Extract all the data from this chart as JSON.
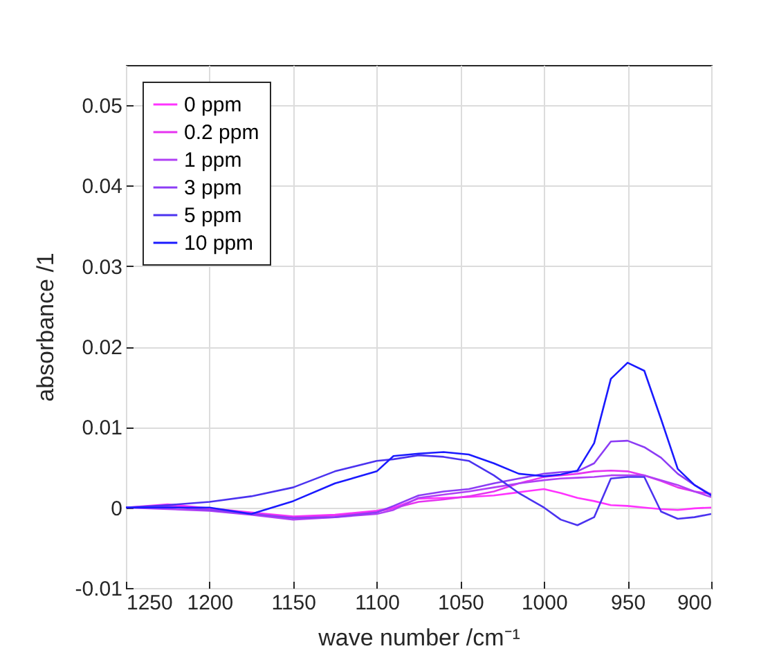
{
  "chart_data": {
    "type": "line",
    "xlabel": "wave number /cm⁻¹",
    "ylabel": "absorbance /1",
    "x": [
      1250,
      1225,
      1200,
      1175,
      1150,
      1125,
      1100,
      1090,
      1075,
      1060,
      1045,
      1030,
      1015,
      1000,
      990,
      980,
      970,
      960,
      950,
      940,
      930,
      920,
      910,
      900
    ],
    "series": [
      {
        "name": "0 ppm",
        "color": "#ff33ff",
        "values": [
          0,
          0.0004,
          -0.0001,
          -0.0006,
          -0.0011,
          -0.0009,
          -0.0004,
          0,
          0.0011,
          0.0012,
          0.0013,
          0.0015,
          0.0019,
          0.0023,
          0.0018,
          0.0012,
          0.0008,
          0.0003,
          0.0002,
          0,
          -0.0002,
          -0.0003,
          -0.0001,
          0
        ]
      },
      {
        "name": "0.2 ppm",
        "color": "#e633f0",
        "values": [
          0,
          0.0002,
          -0.0002,
          -0.0007,
          -0.0012,
          -0.001,
          -0.0005,
          -0.0001,
          0.0007,
          0.001,
          0.0014,
          0.002,
          0.003,
          0.0038,
          0.004,
          0.0042,
          0.0045,
          0.0046,
          0.0045,
          0.004,
          0.0033,
          0.0025,
          0.002,
          0.0017
        ]
      },
      {
        "name": "1 ppm",
        "color": "#b040f5",
        "values": [
          0,
          -0.0002,
          -0.0004,
          -0.0009,
          -0.0015,
          -0.0012,
          -0.0008,
          -0.0003,
          0.0012,
          0.0016,
          0.002,
          0.0025,
          0.003,
          0.0034,
          0.0036,
          0.0037,
          0.0038,
          0.004,
          0.004,
          0.004,
          0.0034,
          0.0028,
          0.002,
          0.0013
        ]
      },
      {
        "name": "3 ppm",
        "color": "#8c3cf5",
        "values": [
          0,
          0.0001,
          -0.0003,
          -0.0008,
          -0.0013,
          -0.0012,
          -0.0006,
          0.0002,
          0.0015,
          0.002,
          0.0023,
          0.003,
          0.0036,
          0.0042,
          0.0044,
          0.0045,
          0.0055,
          0.0082,
          0.0083,
          0.0075,
          0.0062,
          0.0042,
          0.0028,
          0.0016
        ]
      },
      {
        "name": "5 ppm",
        "color": "#4b33f0",
        "values": [
          0,
          0.0003,
          0.0007,
          0.0014,
          0.0025,
          0.0045,
          0.0058,
          0.006,
          0.0065,
          0.0063,
          0.0058,
          0.004,
          0.0018,
          0,
          -0.0015,
          -0.0022,
          -0.0012,
          0.0036,
          0.0038,
          0.0038,
          -0.0005,
          -0.0014,
          -0.0012,
          -0.0008
        ]
      },
      {
        "name": "10 ppm",
        "color": "#1a1aff",
        "values": [
          0,
          0,
          0,
          -0.0008,
          0.0008,
          0.003,
          0.0045,
          0.0064,
          0.0067,
          0.0069,
          0.0066,
          0.0055,
          0.0042,
          0.0039,
          0.0041,
          0.0046,
          0.008,
          0.016,
          0.018,
          0.017,
          0.011,
          0.0048,
          0.0028,
          0.0015
        ]
      }
    ],
    "xlim": [
      1250,
      900
    ],
    "xticks": [
      1250,
      1200,
      1150,
      1100,
      1050,
      1000,
      950,
      900
    ],
    "ylim": [
      -0.01,
      0.055
    ],
    "yticks": [
      -0.01,
      0,
      0.01,
      0.02,
      0.03,
      0.04,
      0.05
    ],
    "grid": true,
    "legend": "top left",
    "marker": "none",
    "line_style": "solid"
  }
}
